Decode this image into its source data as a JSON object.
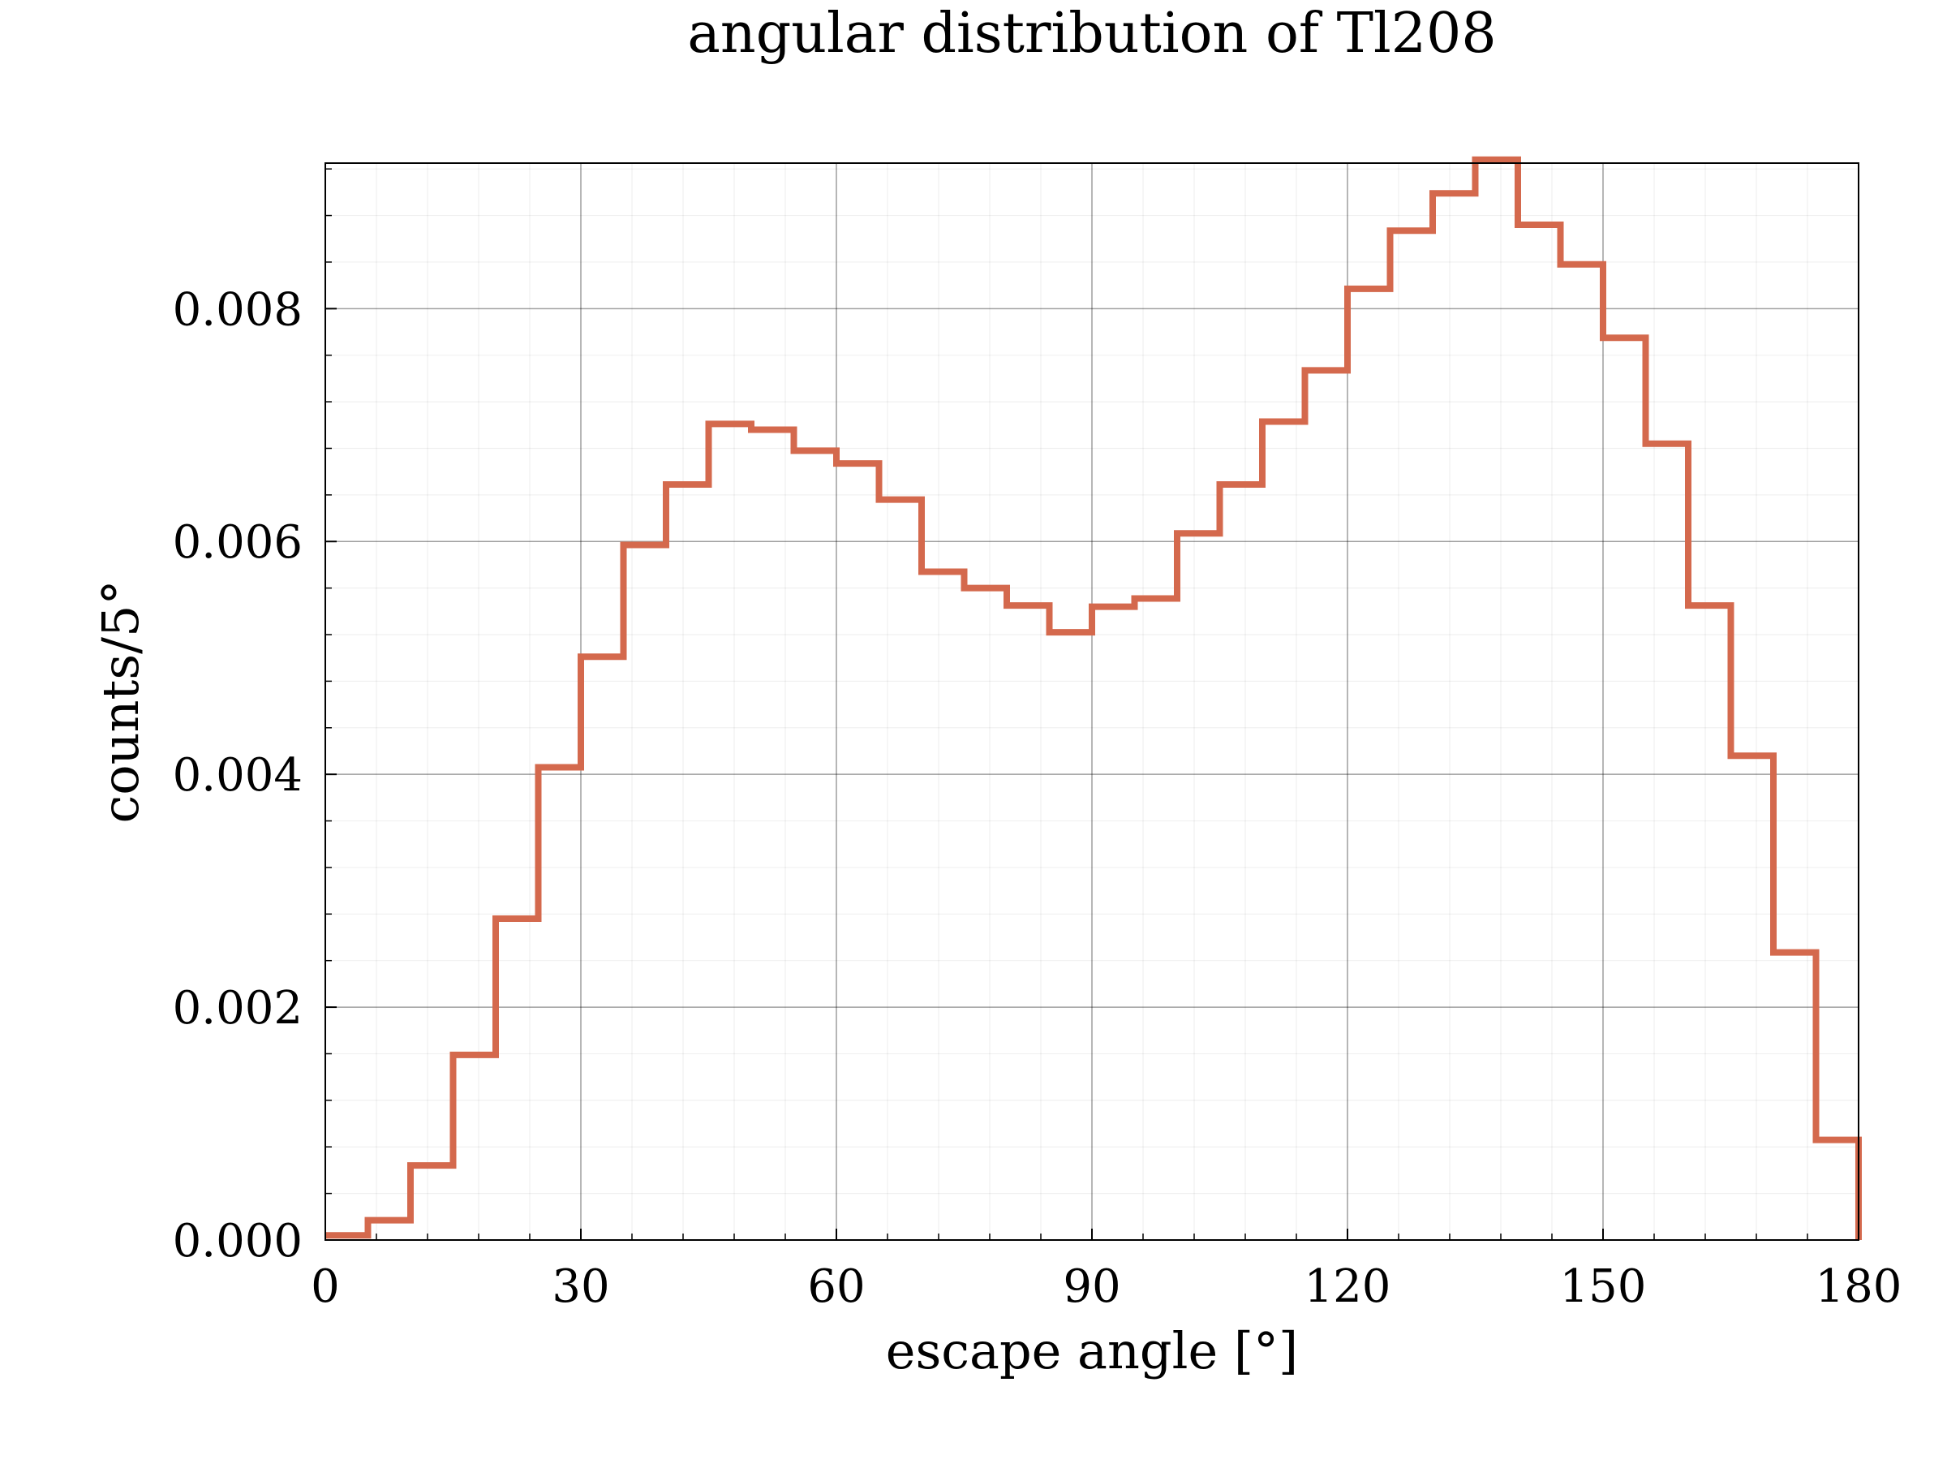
{
  "chart_data": {
    "type": "histogram",
    "title": "angular distribution of Tl208",
    "xlabel": "escape angle [°]",
    "ylabel": "counts/5°",
    "xlim": [
      0,
      180
    ],
    "ylim": [
      0,
      0.00925
    ],
    "x_ticks": [
      0,
      30,
      60,
      90,
      120,
      150,
      180
    ],
    "x_tick_labels": [
      "0",
      "30",
      "60",
      "90",
      "120",
      "150",
      "180"
    ],
    "y_ticks": [
      0,
      0.002,
      0.004,
      0.006,
      0.008
    ],
    "y_tick_labels": [
      "0.000",
      "0.002",
      "0.004",
      "0.006",
      "0.008"
    ],
    "grid": true,
    "minor_grid": true,
    "bin_edges": [
      0,
      5,
      10,
      15,
      20,
      25,
      30,
      35,
      40,
      45,
      50,
      55,
      60,
      65,
      70,
      75,
      80,
      85,
      90,
      95,
      100,
      105,
      110,
      115,
      120,
      125,
      130,
      135,
      140,
      145,
      150,
      155,
      160,
      165,
      170,
      175,
      180
    ],
    "series": [
      {
        "color": "#d4694d",
        "values": [
          4e-05,
          0.00017,
          0.00064,
          0.00159,
          0.00276,
          0.00406,
          0.00501,
          0.00597,
          0.00649,
          0.00701,
          0.00696,
          0.00678,
          0.00667,
          0.00636,
          0.00574,
          0.0056,
          0.00545,
          0.00522,
          0.00544,
          0.00551,
          0.00607,
          0.00649,
          0.00703,
          0.00747,
          0.00817,
          0.00867,
          0.00899,
          0.00928,
          0.00872,
          0.00838,
          0.00775,
          0.00684,
          0.00545,
          0.00416,
          0.00247,
          0.00086
        ]
      }
    ]
  }
}
